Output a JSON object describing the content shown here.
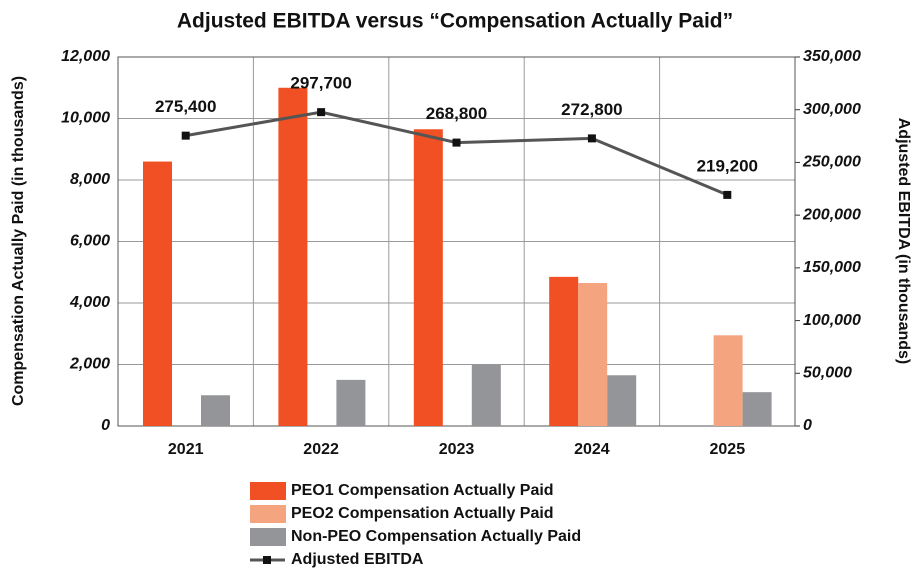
{
  "chart_data": {
    "type": "bar",
    "title": "Adjusted EBITDA versus “Compensation Actually Paid”",
    "y_label": "Compensation Actually Paid (in thousands)",
    "y2_label": "Adjusted EBITDA (in thousands)",
    "categories": [
      "2021",
      "2022",
      "2023",
      "2024",
      "2025"
    ],
    "series": [
      {
        "name": "PEO1 Compensation Actually Paid",
        "color": "#f05023",
        "values": [
          8600,
          11000,
          9650,
          4850,
          null
        ]
      },
      {
        "name": "PEO2 Compensation Actually Paid",
        "color": "#f4a57f",
        "values": [
          null,
          null,
          null,
          4650,
          2950
        ]
      },
      {
        "name": "Non-PEO Compensation Actually Paid",
        "color": "#939598",
        "values": [
          1000,
          1500,
          2000,
          1650,
          1100
        ]
      },
      {
        "name": "Adjusted EBITDA",
        "color": "#555555",
        "type": "line",
        "axis": "y2",
        "values": [
          275400,
          297700,
          268800,
          272800,
          219200
        ],
        "value_labels": [
          "275,400",
          "297,700",
          "268,800",
          "272,800",
          "219,200"
        ]
      }
    ],
    "ylim": [
      0,
      12000
    ],
    "yticks": [
      0,
      {
        "value": 2000,
        "label": "2,000"
      },
      {
        "value": 4000,
        "label": "4,000"
      },
      {
        "value": 6000,
        "label": "6,000"
      },
      {
        "value": 8000,
        "label": "8,000"
      },
      {
        "value": 10000,
        "label": "10,000"
      },
      {
        "value": 12000,
        "label": "12,000"
      }
    ],
    "y2lim": [
      0,
      350000
    ],
    "y2ticks": [
      0,
      {
        "value": 50000,
        "label": "50,000"
      },
      {
        "value": 100000,
        "label": "100,000"
      },
      {
        "value": 150000,
        "label": "150,000"
      },
      {
        "value": 200000,
        "label": "200,000"
      },
      {
        "value": 250000,
        "label": "250,000"
      },
      {
        "value": 300000,
        "label": "300,000"
      },
      {
        "value": 350000,
        "label": "350,000"
      }
    ],
    "grid": true
  }
}
